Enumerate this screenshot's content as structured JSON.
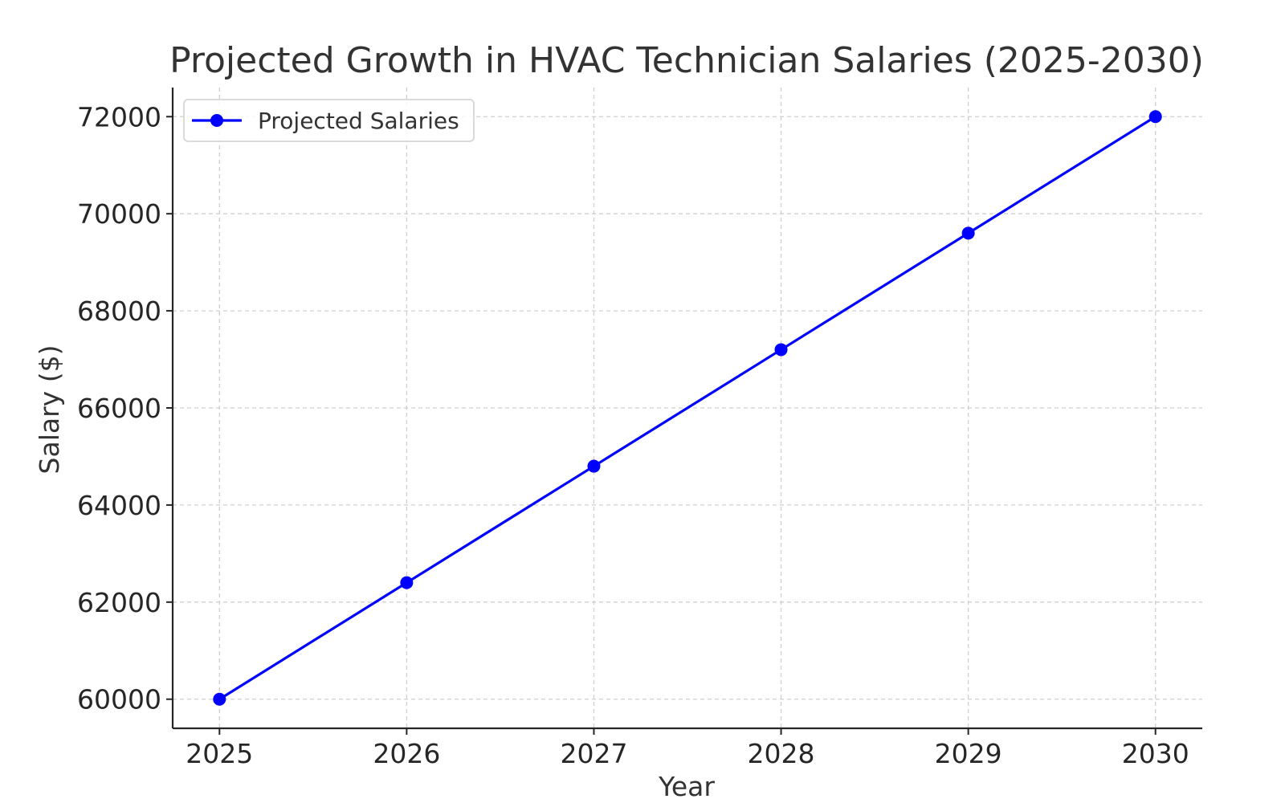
{
  "chart_data": {
    "type": "line",
    "title": "Projected Growth in HVAC Technician Salaries (2025-2030)",
    "xlabel": "Year",
    "ylabel": "Salary ($)",
    "x": [
      2025,
      2026,
      2027,
      2028,
      2029,
      2030
    ],
    "xtick_labels": [
      "2025",
      "2026",
      "2027",
      "2028",
      "2029",
      "2030"
    ],
    "xlim": [
      2024.75,
      2030.25
    ],
    "yticks": [
      60000,
      62000,
      64000,
      66000,
      68000,
      70000,
      72000
    ],
    "ytick_labels": [
      "60000",
      "62000",
      "64000",
      "66000",
      "68000",
      "70000",
      "72000"
    ],
    "ylim": [
      59400,
      72600
    ],
    "grid": true,
    "legend_position": "upper-left",
    "series": [
      {
        "name": "Projected Salaries",
        "color": "#0000ff",
        "marker": "circle",
        "values": [
          60000,
          62400,
          64800,
          67200,
          69600,
          72000
        ]
      }
    ]
  }
}
